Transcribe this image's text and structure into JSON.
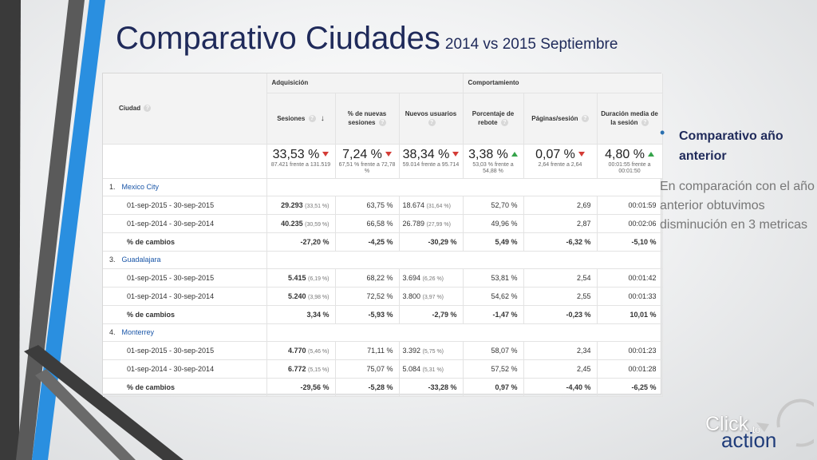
{
  "slide": {
    "title_main": "Comparativo Ciudades",
    "title_sub": "2014 vs 2015 Septiembre"
  },
  "report": {
    "group_acquisition": "Adquisición",
    "group_behavior": "Comportamiento",
    "col_city": "Ciudad",
    "columns": [
      "Sesiones",
      "% de nuevas sesiones",
      "Nuevos usuarios",
      "Porcentaje de rebote",
      "Páginas/sesión",
      "Duración media de la sesión"
    ],
    "summary": [
      {
        "value": "33,53 %",
        "trend": "down",
        "detail": "87.421 frente a 131.519"
      },
      {
        "value": "7,24 %",
        "trend": "down",
        "detail": "67,51 % frente a 72,78 %"
      },
      {
        "value": "38,34 %",
        "trend": "down",
        "detail": "59.014 frente a 95.714"
      },
      {
        "value": "3,38 %",
        "trend": "up",
        "detail": "53,03 % frente a 54,88 %"
      },
      {
        "value": "0,07 %",
        "trend": "down",
        "detail": "2,64 frente a 2,64"
      },
      {
        "value": "4,80 %",
        "trend": "up",
        "detail": "00:01:55 frente a 00:01:50"
      }
    ],
    "cities": [
      {
        "index": "1.",
        "name": "Mexico City",
        "rows": [
          {
            "label": "01-sep-2015 - 30-sep-2015",
            "sessions": "29.293",
            "sessions_pct": "(33,51 %)",
            "new_sessions": "63,75 %",
            "new_users": "18.674",
            "new_users_pct": "(31,64 %)",
            "bounce": "52,70 %",
            "pages": "2,69",
            "duration": "00:01:59"
          },
          {
            "label": "01-sep-2014 - 30-sep-2014",
            "sessions": "40.235",
            "sessions_pct": "(30,59 %)",
            "new_sessions": "66,58 %",
            "new_users": "26.789",
            "new_users_pct": "(27,99 %)",
            "bounce": "49,96 %",
            "pages": "2,87",
            "duration": "00:02:06"
          },
          {
            "label": "% de cambios",
            "sessions": "-27,20 %",
            "sessions_pct": "",
            "new_sessions": "-4,25 %",
            "new_users": "-30,29 %",
            "new_users_pct": "",
            "bounce": "5,49 %",
            "pages": "-6,32 %",
            "duration": "-5,10 %"
          }
        ]
      },
      {
        "index": "3.",
        "name": "Guadalajara",
        "rows": [
          {
            "label": "01-sep-2015 - 30-sep-2015",
            "sessions": "5.415",
            "sessions_pct": "(6,19 %)",
            "new_sessions": "68,22 %",
            "new_users": "3.694",
            "new_users_pct": "(6,26 %)",
            "bounce": "53,81 %",
            "pages": "2,54",
            "duration": "00:01:42"
          },
          {
            "label": "01-sep-2014 - 30-sep-2014",
            "sessions": "5.240",
            "sessions_pct": "(3,98 %)",
            "new_sessions": "72,52 %",
            "new_users": "3.800",
            "new_users_pct": "(3,97 %)",
            "bounce": "54,62 %",
            "pages": "2,55",
            "duration": "00:01:33"
          },
          {
            "label": "% de cambios",
            "sessions": "3,34 %",
            "sessions_pct": "",
            "new_sessions": "-5,93 %",
            "new_users": "-2,79 %",
            "new_users_pct": "",
            "bounce": "-1,47 %",
            "pages": "-0,23 %",
            "duration": "10,01 %"
          }
        ]
      },
      {
        "index": "4.",
        "name": "Monterrey",
        "rows": [
          {
            "label": "01-sep-2015 - 30-sep-2015",
            "sessions": "4.770",
            "sessions_pct": "(5,46 %)",
            "new_sessions": "71,11 %",
            "new_users": "3.392",
            "new_users_pct": "(5,75 %)",
            "bounce": "58,07 %",
            "pages": "2,34",
            "duration": "00:01:23"
          },
          {
            "label": "01-sep-2014 - 30-sep-2014",
            "sessions": "6.772",
            "sessions_pct": "(5,15 %)",
            "new_sessions": "75,07 %",
            "new_users": "5.084",
            "new_users_pct": "(5,31 %)",
            "bounce": "57,52 %",
            "pages": "2,45",
            "duration": "00:01:28"
          },
          {
            "label": "% de cambios",
            "sessions": "-29,56 %",
            "sessions_pct": "",
            "new_sessions": "-5,28 %",
            "new_users": "-33,28 %",
            "new_users_pct": "",
            "bounce": "0,97 %",
            "pages": "-4,40 %",
            "duration": "-6,25 %"
          }
        ]
      }
    ]
  },
  "side": {
    "bullet": "Comparativo año anterior",
    "paragraph": "En comparación con el año anterior obtuvimos disminución en 3 metricas"
  },
  "logo": {
    "click": "Click",
    "to": "to",
    "action": "action"
  },
  "colors": {
    "title": "#1f2a5a",
    "link": "#1a56a8",
    "up": "#35a34a",
    "down": "#d43c36",
    "accent_blue": "#2a8fe0"
  }
}
